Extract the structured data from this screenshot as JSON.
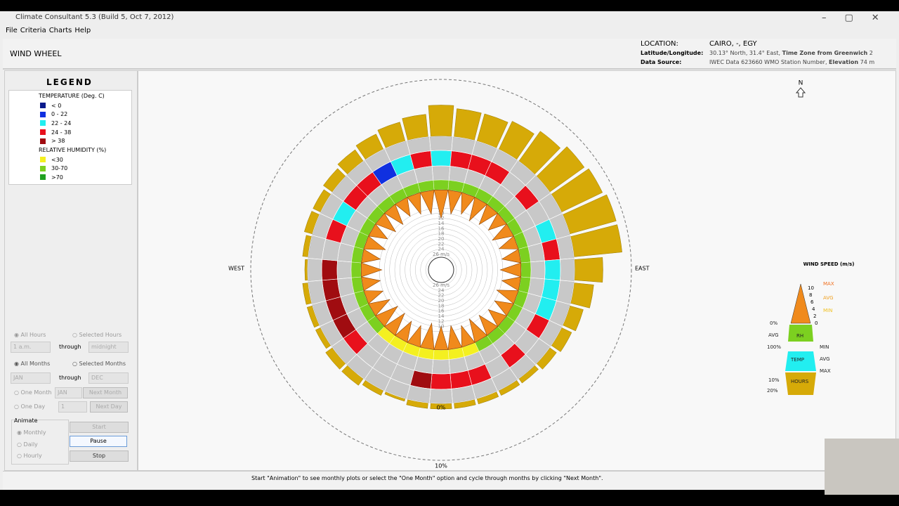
{
  "window": {
    "title": "Climate Consultant 5.3 (Build 5, Oct 7, 2012)",
    "menu": [
      "File",
      "Criteria",
      "Charts",
      "Help"
    ]
  },
  "header": {
    "view": "WIND WHEEL",
    "location_label": "LOCATION:",
    "location": "CAIRO, -, EGY",
    "latlon_label": "Latitude/Longitude:",
    "latlon": "30.13° North, 31.4° East,",
    "tz_label": "Time Zone from Greenwich",
    "tz": "2",
    "source_label": "Data Source:",
    "source": "IWEC Data    623660 WMO Station Number,",
    "elev_label": "Elevation",
    "elev": "74 m"
  },
  "legend": {
    "title": "LEGEND",
    "temp_title": "TEMPERATURE (Deg. C)",
    "temp": [
      {
        "label": "< 0",
        "color": "#0a1a8c"
      },
      {
        "label": "0  -  22",
        "color": "#1030e0"
      },
      {
        "label": "22  -  24",
        "color": "#22eef0"
      },
      {
        "label": "24  -  38",
        "color": "#e8101c"
      },
      {
        "label": "> 38",
        "color": "#a00c10"
      }
    ],
    "rh_title": "RELATIVE HUMIDITY (%)",
    "rh": [
      {
        "label": "<30",
        "color": "#f4f020"
      },
      {
        "label": "30-70",
        "color": "#7cd020"
      },
      {
        "label": ">70",
        "color": "#20a020"
      }
    ]
  },
  "controls": {
    "all_hours": "All Hours",
    "selected_hours": "Selected Hours",
    "hour_from": "1 a.m.",
    "through1": "through",
    "hour_to": "midnight",
    "all_months": "All Months",
    "selected_months": "Selected Months",
    "month_from": "JAN",
    "through2": "through",
    "month_to": "DEC",
    "one_month": "One Month",
    "one_month_value": "JAN",
    "next_month": "Next Month",
    "one_day": "One Day",
    "one_day_value": "1",
    "next_day": "Next Day",
    "animate": "Animate",
    "monthly": "Monthly",
    "daily": "Daily",
    "hourly": "Hourly",
    "start": "Start",
    "pause": "Pause",
    "stop": "Stop"
  },
  "wheel": {
    "west": "WEST",
    "east": "EAST",
    "north": "N",
    "hours_ticks": [
      {
        "value": 0,
        "label": "0%"
      },
      {
        "value": 10,
        "label": "10%"
      }
    ],
    "speed_ticks": [
      8,
      10,
      12,
      14,
      16,
      18,
      20,
      22,
      24,
      {
        "value": 26,
        "label": "26 m/s"
      }
    ],
    "hours": [
      5.5,
      5,
      5,
      5.5,
      6.5,
      7.5,
      8,
      8.5,
      8.5,
      5,
      3.5,
      2.5,
      2,
      1.5,
      1,
      1,
      1,
      1,
      1,
      1,
      0.5,
      1,
      1.5,
      1.5,
      1,
      1,
      1,
      0.5,
      1,
      1.5,
      1.5,
      2,
      2.5,
      3,
      3.5,
      4
    ],
    "temp_class": [
      2,
      3,
      3,
      3,
      null,
      3,
      null,
      2,
      3,
      2,
      2,
      2,
      3,
      null,
      3,
      null,
      3,
      3,
      3,
      4,
      null,
      null,
      null,
      3,
      4,
      4,
      4,
      4,
      null,
      3,
      2,
      3,
      3,
      1,
      2,
      3
    ],
    "rh_class": [
      1,
      1,
      1,
      1,
      1,
      1,
      1,
      1,
      1,
      1,
      1,
      1,
      1,
      1,
      1,
      1,
      0,
      0,
      0,
      0,
      0,
      0,
      0,
      1,
      1,
      1,
      1,
      1,
      1,
      1,
      1,
      1,
      1,
      1,
      1,
      1
    ],
    "max_speed": [
      12,
      10,
      9,
      10,
      9,
      8,
      9,
      8,
      8,
      9,
      8,
      9,
      8,
      8,
      9,
      10,
      9,
      10,
      10,
      11,
      9,
      9,
      10,
      10,
      9,
      8,
      8,
      9,
      8,
      9,
      8,
      9,
      9,
      8,
      9,
      10
    ]
  },
  "speed_legend": {
    "title": "WIND SPEED (m/s)",
    "ticks": [
      "10",
      "8",
      "6",
      "4",
      "2",
      "0"
    ],
    "max": "MAX",
    "avg": "AVG",
    "min": "MIN",
    "rh_low": "0%",
    "rh_avg": "AVG",
    "rh_high": "100%",
    "rh": "RH",
    "t_min": "MIN",
    "temp": "TEMP",
    "t_avg": "AVG",
    "t_max": "MAX",
    "h10": "10%",
    "h20": "20%",
    "hours": "HOURS"
  },
  "status": "Start \"Animation\" to see monthly plots or select the \"One Month\" option and cycle through months by clicking \"Next Month\"."
}
